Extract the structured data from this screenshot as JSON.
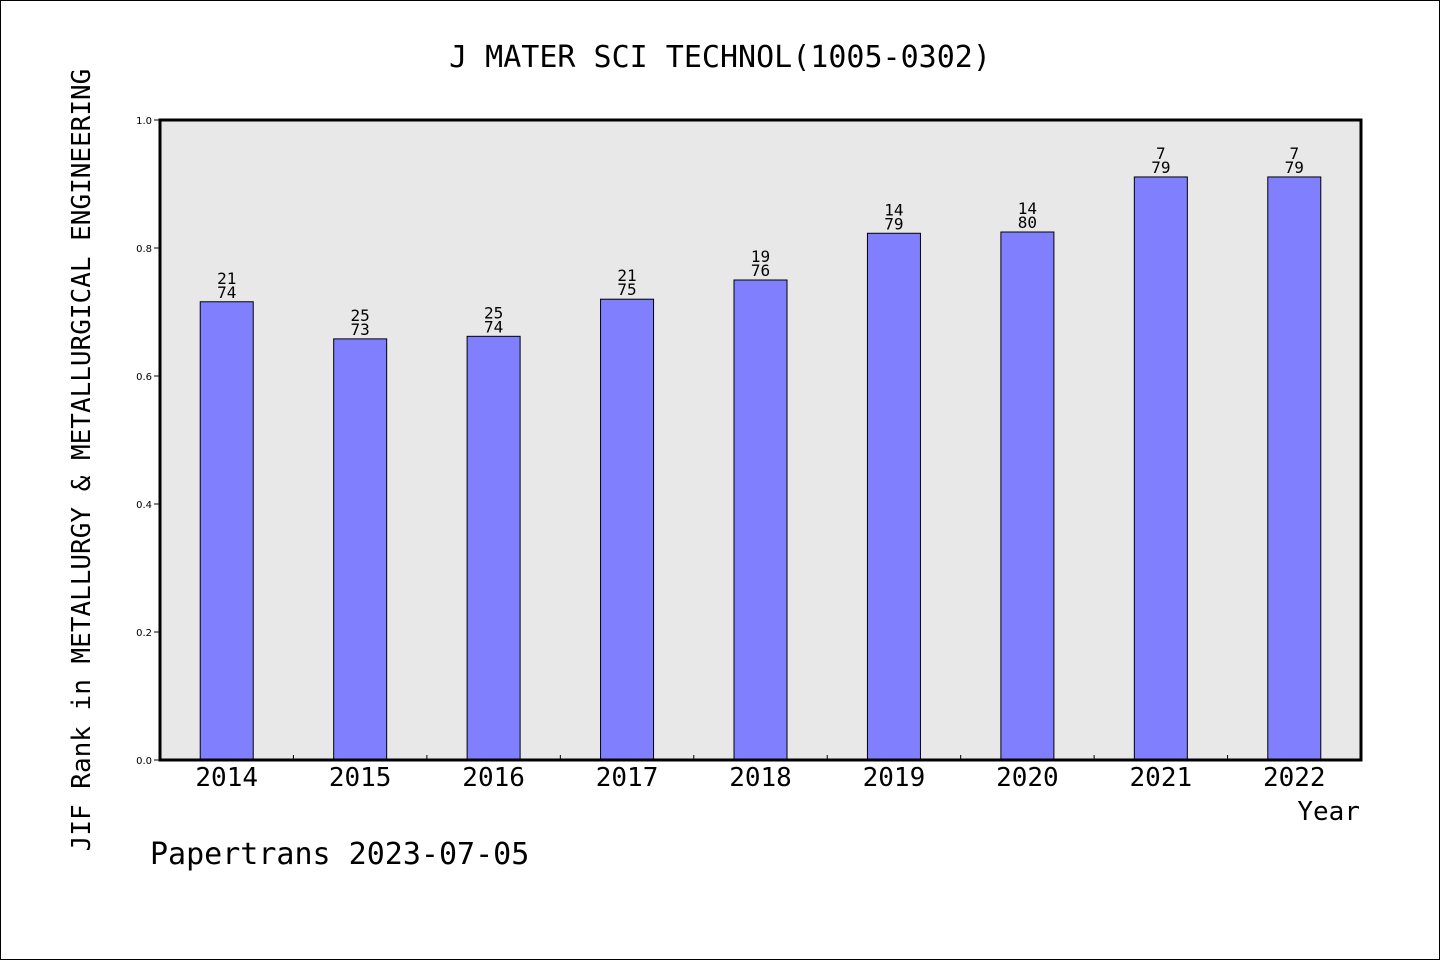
{
  "chart_data": {
    "type": "bar",
    "title": "J MATER SCI TECHNOL(1005-0302)",
    "xlabel": "Year",
    "ylabel": "JIF Rank in METALLURGY & METALLURGICAL ENGINEERING",
    "footer": "Papertrans 2023-07-05",
    "ylim": [
      0,
      1.0
    ],
    "yticks": [
      "0.0",
      "0.2",
      "0.4",
      "0.6",
      "0.8",
      "1.0"
    ],
    "grid": false,
    "colors": {
      "bar": "#8080ff",
      "plot_background": "#e8e8e8"
    },
    "categories": [
      "2014",
      "2015",
      "2016",
      "2017",
      "2018",
      "2019",
      "2020",
      "2021",
      "2022"
    ],
    "values": [
      0.716,
      0.658,
      0.662,
      0.72,
      0.75,
      0.823,
      0.825,
      0.911,
      0.911
    ],
    "rank_labels": [
      [
        "21",
        "74"
      ],
      [
        "25",
        "73"
      ],
      [
        "25",
        "74"
      ],
      [
        "21",
        "75"
      ],
      [
        "19",
        "76"
      ],
      [
        "14",
        "79"
      ],
      [
        "14",
        "80"
      ],
      [
        "7",
        "79"
      ],
      [
        "7",
        "79"
      ]
    ]
  }
}
